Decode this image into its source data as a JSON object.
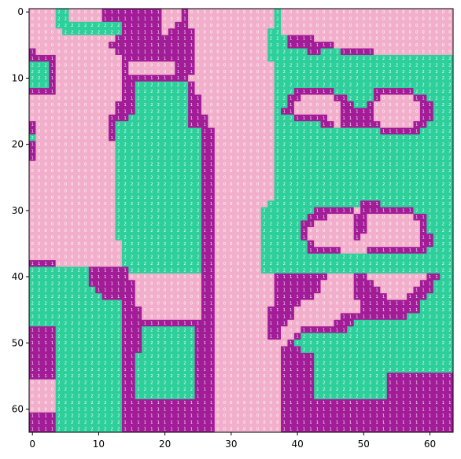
{
  "chart_data": {
    "type": "heatmap",
    "title": "",
    "xlabel": "",
    "ylabel": "",
    "xlim": [
      0,
      63
    ],
    "ylim": [
      63,
      0
    ],
    "x_ticks": [
      0,
      10,
      20,
      30,
      40,
      50,
      60
    ],
    "y_ticks": [
      0,
      10,
      20,
      30,
      40,
      50,
      60
    ],
    "x_tick_labels": [
      "0",
      "10",
      "20",
      "30",
      "40",
      "50",
      "60"
    ],
    "y_tick_labels": [
      "0",
      "10",
      "20",
      "30",
      "40",
      "50",
      "60"
    ],
    "colors": {
      "0": "#f2afcb",
      "1": "#a21c98",
      "2": "#2dcf9a"
    },
    "cell_text_color": "#ffffff",
    "grid": false,
    "legend": false,
    "values": [
      "0000220000011111111100010000000000000200000000000000000000000000",
      "0000220000011111111100010000000000000200000000000000000000000000",
      "0000222222222211111100110000000000000200000000000000000000000000",
      "0000022222222211111101111000000000002200000000000000000000000000",
      "0000000000000111111111111000000000002221111000000000000000000000",
      "0000000000001111111111111000000000002221111111000000000000000000",
      "1000000000000111111111111000000000002222221122211111000000000000",
      "1111000000000011111111111000000000002222222222222222222222222222",
      "2221000000000010000000111000000000000222222222222222222222222222",
      "2221000000000010000000111000000000000222222222222222222222222222",
      "2221000000000011111111110000000000000222222222222222222222222222",
      "2221000000000011222222221000000000000222222222222222222222222222",
      "1111000000000011222222221000000000000222111111222222111111222222",
      "0000000000000011222222221100000000000221100000112222100000112222",
      "0000000000000111222222221100000000000221000000011221000000011222",
      "0000000000000111222222221100000000000211000000011111000000011222",
      "0000000000001112222222221110000000000222111110011111000000011222",
      "1000000000001222222222221110000000000222222211011111100000112222",
      "1000000000001222222222222211000000000222222222222222211111122222",
      "2000000000001222222222222211000000000222222222222222222222222222",
      "1000000000000222222222222211000000000222222222222222222222222222",
      "1000000000000222222222222211000000000222222222222222222222222222",
      "1000000000000222222222222211000000000222222222222222222222222222",
      "0000000000000222222222222211000000000222222222222222222222222222",
      "0000000000000222222222222211000000000222222222222222222222222222",
      "0000000000000222222222222211000000000222222222222222222222222222",
      "0000000000000222222222222211000000000222222222222222222222222222",
      "0000000000000222222222222211000000000222222222222222222222222222",
      "0000000000000222222222222211000000000222222222222222222222222222",
      "0000000000000222222222222211000000002222222222222211122222222222",
      "0000000000000222222222222211000000022222222111111011111111222222",
      "0000000000000222222222222211000000022222221110000110000000112222",
      "0000000000000222222222222211000000022222211000000110000000012222",
      "0000000000000222222222222211000000022222210000000110000000012222",
      "0000000000000222222222222211000000022222210000000100000000011222",
      "0000000000000022222222222211000000022222221000000000000000011222",
      "0000000000000022222222222211000000022222221111100001111111112222",
      "0000000000000022222222222211000000022222222222222222222222222222",
      "1111000000000022222222222211000000022222222222222222222222222222",
      "2222222221111112222222222211000000022222222222222222222222222222",
      "2222222221111110000000000011000000000111111110000110000000001122",
      "2222222221111111000000000011000000000111111100000111000000011222",
      "2222222222111111000000000011000000000111111100000111100000111222",
      "2222222222211111000000000011000000000111111000000111110001112222",
      "2222222222222211000000000011000000000111100000000011111111122222",
      "2222222222222211100000000011000000001111000000000011111111122222",
      "2222222222222211100000000011000000001111000000011111111112222222",
      "2222222222222211111111111111000000001110000000111222222222222222",
      "1111222222222211122222222111000000001100011111112222222222222222",
      "1111222222222211122222222111000000001100122222222222222222222222",
      "1111222222222211122222222111000000000001222222222222222222222222",
      "1111222222222211122222222111000000000011122222222222222222222222",
      "1111222222222211222222222111000000000011111222222222222222222222",
      "1111222222222211222222222111000000000011111222222222222222222222",
      "1111222222222211222222222111000000000011111222222222222222222222",
      "1111222222222211222222222111000000000011111222222222221111111111",
      "0000222222222211222222222111000000000011111222222222221111111111",
      "0000222222222211222222222111000000000011111222222222221111111111",
      "0000222222222211222222222111000000000011111222222222221111111111",
      "0000222222222211111111111111000000000011111111111111111111111111",
      "0000222222222211111111111111000000000011111111111111111111111111",
      "1111222222222211111111111111000000000011111111111111111111111111",
      "1111222222222211111111111111000000000011111111111111111111111111",
      "1111222222222211111111111111000000000011111111111111111111111111"
    ]
  }
}
